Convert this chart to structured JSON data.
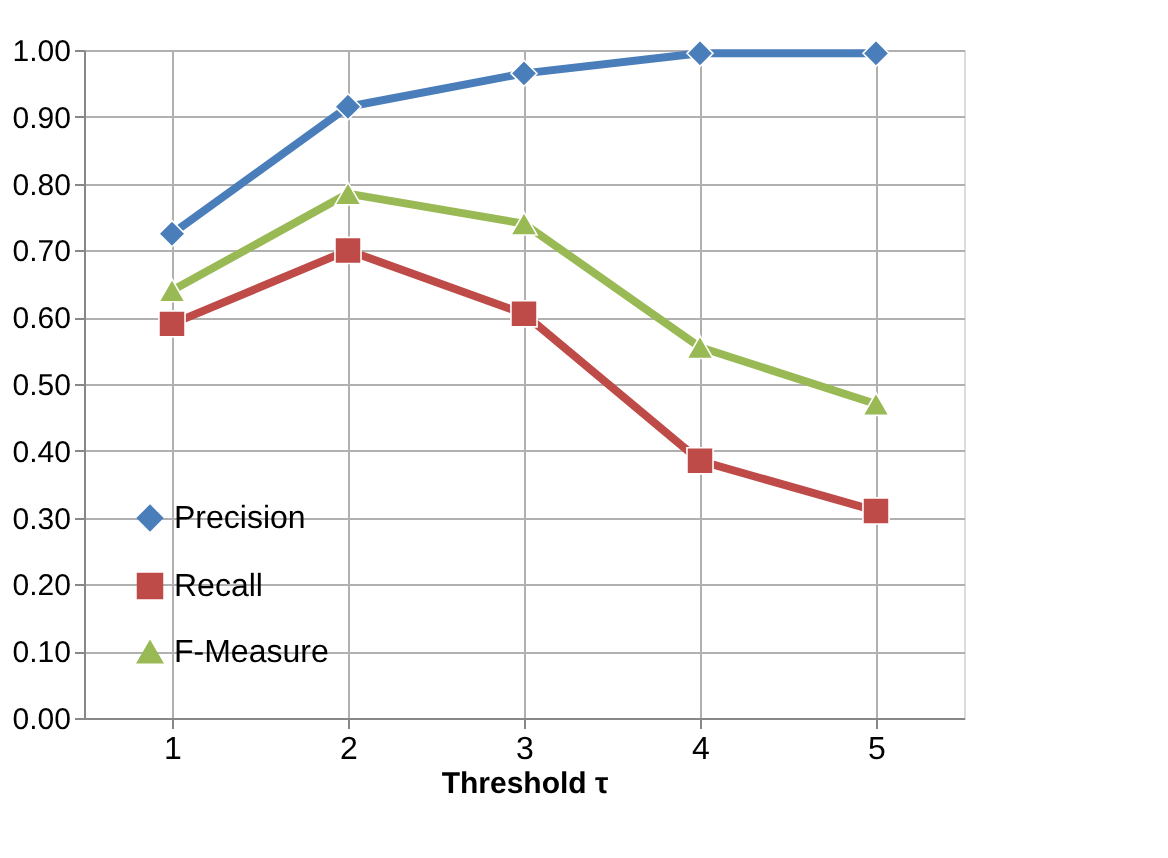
{
  "chart_data": {
    "type": "line",
    "xlabel": "Threshold τ",
    "categories": [
      "1",
      "2",
      "3",
      "4",
      "5"
    ],
    "series": [
      {
        "name": "Precision",
        "color": "#4a7ebb",
        "marker": "diamond",
        "values": [
          0.725,
          0.915,
          0.965,
          0.995,
          0.995
        ]
      },
      {
        "name": "Recall",
        "color": "#be4b48",
        "marker": "square",
        "values": [
          0.59,
          0.7,
          0.605,
          0.385,
          0.31
        ]
      },
      {
        "name": "F-Measure",
        "color": "#98b954",
        "marker": "triangle",
        "values": [
          0.64,
          0.785,
          0.74,
          0.555,
          0.47
        ]
      }
    ],
    "ylim": [
      0,
      1
    ],
    "yticks": [
      {
        "value": 0,
        "label": "0.00"
      },
      {
        "value": 0.1,
        "label": "0.10"
      },
      {
        "value": 0.2,
        "label": "0.20"
      },
      {
        "value": 0.3,
        "label": "0.30"
      },
      {
        "value": 0.4,
        "label": "0.40"
      },
      {
        "value": 0.5,
        "label": "0.50"
      },
      {
        "value": 0.6,
        "label": "0.60"
      },
      {
        "value": 0.7,
        "label": "0.70"
      },
      {
        "value": 0.8,
        "label": "0.80"
      },
      {
        "value": 0.9,
        "label": "0.90"
      },
      {
        "value": 1,
        "label": "1.00"
      }
    ],
    "grid": true,
    "legend": "bottom left",
    "line_style": "solid"
  }
}
